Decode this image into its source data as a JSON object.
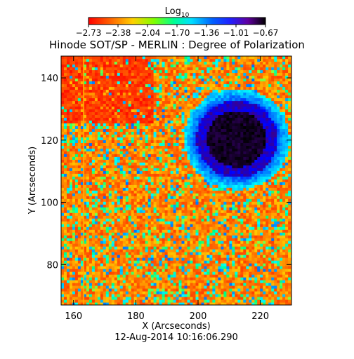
{
  "chart_data": {
    "type": "heatmap",
    "title": "Hinode SOT/SP - MERLIN : Degree of Polarization",
    "xlabel": "X (Arcseconds)",
    "ylabel": "Y (Arcseconds)",
    "footer": "12-Aug-2014 10:16:06.290",
    "xlim": [
      156,
      230
    ],
    "ylim": [
      67,
      147
    ],
    "x_ticks": [
      160,
      180,
      200,
      220
    ],
    "y_ticks": [
      80,
      100,
      120,
      140
    ],
    "colorbar": {
      "label": "Log",
      "label_sub": "10",
      "ticks": [
        "−2.73",
        "−2.38",
        "−2.04",
        "−1.70",
        "−1.36",
        "−1.01",
        "−0.67"
      ],
      "range": [
        -2.73,
        -0.67
      ],
      "colors": [
        "#ff0000",
        "#ff8000",
        "#ffff00",
        "#00ff80",
        "#00ffff",
        "#0080ff",
        "#0000ff",
        "#400080",
        "#000000"
      ]
    },
    "features": {
      "sunspot_center": [
        212,
        120
      ],
      "sunspot_umbra_radius_arcsec": 9,
      "value_umbra": -0.67,
      "value_penumbra": -1.2,
      "value_quiet_sun": -2.6
    }
  }
}
